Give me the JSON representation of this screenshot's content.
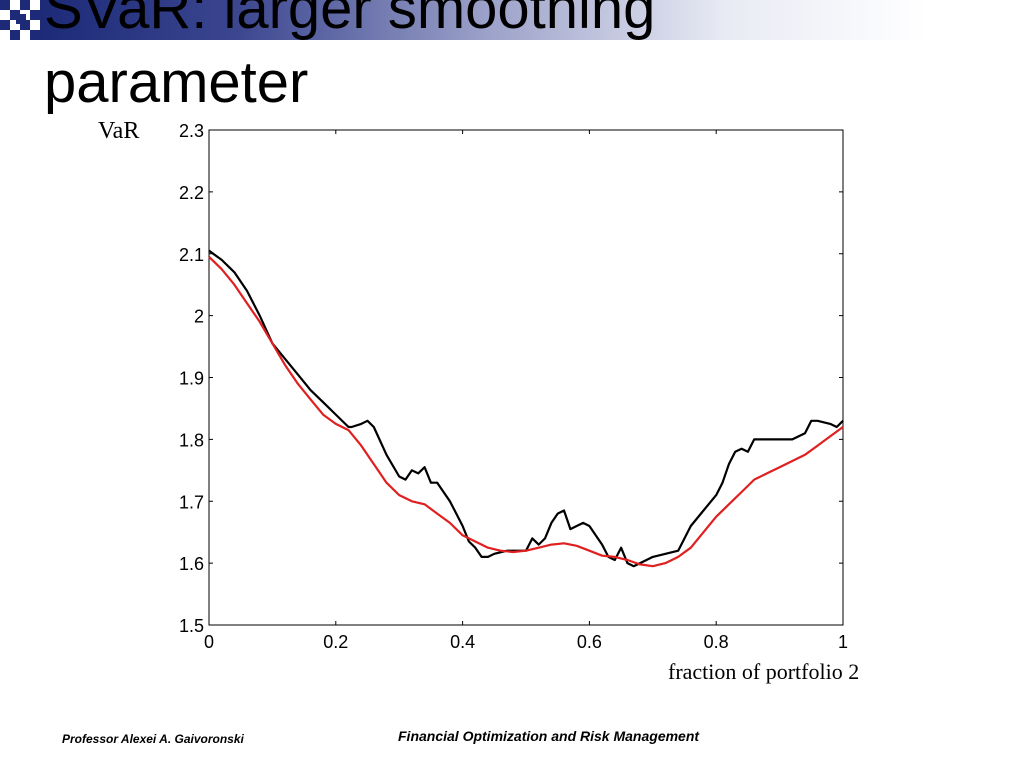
{
  "slide": {
    "title": "SVaR: larger smoothing parameter",
    "footer_left": "Professor Alexei A. Gaivoronski",
    "footer_center": "Financial Optimization and Risk Management",
    "title_band_color": "#1c2a78"
  },
  "chart_data": {
    "type": "line",
    "xlabel": "fraction of portfolio 2",
    "ylabel": "VaR",
    "xlim": [
      0,
      1
    ],
    "ylim": [
      1.5,
      2.3
    ],
    "xticks": [
      0,
      0.2,
      0.4,
      0.6,
      0.8,
      1
    ],
    "xtick_labels": [
      "0",
      "0.2",
      "0.4",
      "0.6",
      "0.8",
      "1"
    ],
    "yticks": [
      1.5,
      1.6,
      1.7,
      1.8,
      1.9,
      2,
      2.1,
      2.2,
      2.3
    ],
    "ytick_labels": [
      "1.5",
      "1.6",
      "1.7",
      "1.8",
      "1.9",
      "2",
      "2.1",
      "2.2",
      "2.3"
    ],
    "grid": false,
    "series": [
      {
        "color": "#000000",
        "x": [
          0,
          0.02,
          0.04,
          0.06,
          0.08,
          0.1,
          0.12,
          0.14,
          0.16,
          0.18,
          0.2,
          0.22,
          0.225,
          0.24,
          0.25,
          0.26,
          0.28,
          0.3,
          0.31,
          0.32,
          0.33,
          0.34,
          0.35,
          0.36,
          0.38,
          0.39,
          0.4,
          0.41,
          0.42,
          0.43,
          0.44,
          0.45,
          0.47,
          0.49,
          0.5,
          0.51,
          0.52,
          0.53,
          0.54,
          0.55,
          0.56,
          0.57,
          0.58,
          0.59,
          0.6,
          0.61,
          0.62,
          0.63,
          0.64,
          0.65,
          0.66,
          0.67,
          0.68,
          0.69,
          0.7,
          0.72,
          0.74,
          0.75,
          0.76,
          0.78,
          0.8,
          0.81,
          0.82,
          0.83,
          0.84,
          0.85,
          0.86,
          0.87,
          0.88,
          0.9,
          0.92,
          0.94,
          0.95,
          0.96,
          0.98,
          0.99,
          1.0
        ],
        "values": [
          2.105,
          2.09,
          2.07,
          2.04,
          2.0,
          1.955,
          1.93,
          1.905,
          1.88,
          1.86,
          1.84,
          1.82,
          1.82,
          1.825,
          1.83,
          1.82,
          1.775,
          1.74,
          1.735,
          1.75,
          1.745,
          1.755,
          1.73,
          1.73,
          1.7,
          1.68,
          1.66,
          1.635,
          1.625,
          1.61,
          1.61,
          1.615,
          1.62,
          1.62,
          1.62,
          1.64,
          1.63,
          1.64,
          1.665,
          1.68,
          1.685,
          1.655,
          1.66,
          1.665,
          1.66,
          1.645,
          1.63,
          1.61,
          1.605,
          1.625,
          1.6,
          1.595,
          1.6,
          1.605,
          1.61,
          1.615,
          1.62,
          1.64,
          1.66,
          1.685,
          1.71,
          1.73,
          1.76,
          1.78,
          1.785,
          1.78,
          1.8,
          1.8,
          1.8,
          1.8,
          1.8,
          1.81,
          1.83,
          1.83,
          1.825,
          1.82,
          1.83
        ]
      },
      {
        "color": "#e02020",
        "x": [
          0,
          0.02,
          0.04,
          0.06,
          0.08,
          0.1,
          0.12,
          0.14,
          0.16,
          0.18,
          0.2,
          0.22,
          0.24,
          0.26,
          0.28,
          0.3,
          0.32,
          0.34,
          0.36,
          0.38,
          0.4,
          0.42,
          0.44,
          0.46,
          0.48,
          0.5,
          0.52,
          0.54,
          0.56,
          0.58,
          0.6,
          0.62,
          0.64,
          0.66,
          0.68,
          0.7,
          0.72,
          0.74,
          0.76,
          0.78,
          0.8,
          0.82,
          0.84,
          0.86,
          0.88,
          0.9,
          0.92,
          0.94,
          0.96,
          0.98,
          1.0
        ],
        "values": [
          2.095,
          2.075,
          2.05,
          2.02,
          1.99,
          1.955,
          1.92,
          1.89,
          1.865,
          1.84,
          1.825,
          1.815,
          1.79,
          1.76,
          1.73,
          1.71,
          1.7,
          1.695,
          1.68,
          1.665,
          1.645,
          1.635,
          1.625,
          1.62,
          1.618,
          1.62,
          1.625,
          1.63,
          1.632,
          1.628,
          1.62,
          1.612,
          1.61,
          1.605,
          1.598,
          1.595,
          1.6,
          1.61,
          1.625,
          1.65,
          1.675,
          1.695,
          1.715,
          1.735,
          1.745,
          1.755,
          1.765,
          1.775,
          1.79,
          1.805,
          1.82
        ]
      }
    ]
  }
}
